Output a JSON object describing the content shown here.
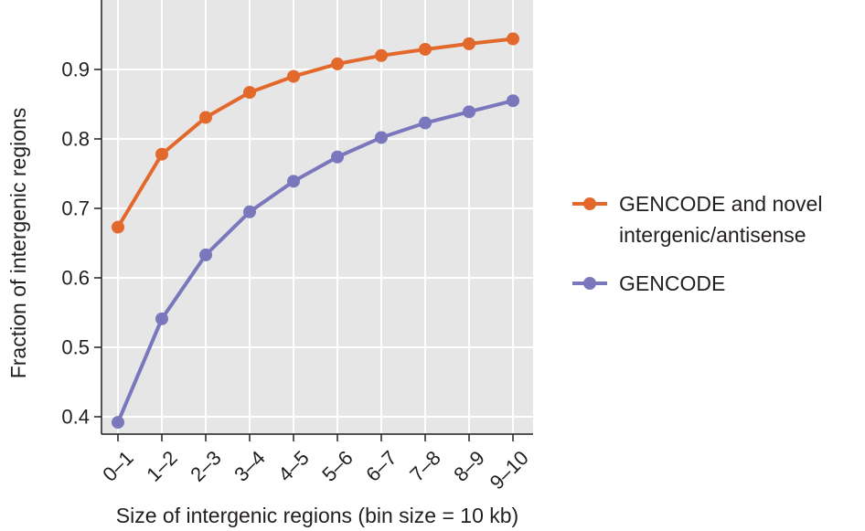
{
  "chart_data": {
    "type": "line",
    "categories": [
      "0–1",
      "1–2",
      "2–3",
      "3–4",
      "4–5",
      "5–6",
      "6–7",
      "7–8",
      "8–9",
      "9–10"
    ],
    "series": [
      {
        "name": "GENCODE and novel intergenic/antisense",
        "legend_lines": [
          "GENCODE and novel",
          "intergenic/antisense"
        ],
        "color": "#e2692b",
        "values": [
          0.673,
          0.778,
          0.831,
          0.867,
          0.89,
          0.908,
          0.92,
          0.929,
          0.937,
          0.944
        ]
      },
      {
        "name": "GENCODE",
        "legend_lines": [
          "GENCODE"
        ],
        "color": "#7b77bc",
        "values": [
          0.392,
          0.541,
          0.633,
          0.695,
          0.739,
          0.774,
          0.802,
          0.823,
          0.839,
          0.855
        ]
      }
    ],
    "xlabel": "Size of intergenic regions (bin size = 10 kb)",
    "ylabel": "Fraction of intergenic regions",
    "yticks": [
      0.4,
      0.5,
      0.6,
      0.7,
      0.8,
      0.9
    ],
    "ytick_labels": [
      "0.4",
      "0.5",
      "0.6",
      "0.7",
      "0.8",
      "0.9"
    ],
    "ylim": [
      0.375,
      1.0
    ],
    "grid": true,
    "plot_background": "#e6e6e7",
    "grid_color": "#ffffff",
    "legend_position": "right"
  }
}
